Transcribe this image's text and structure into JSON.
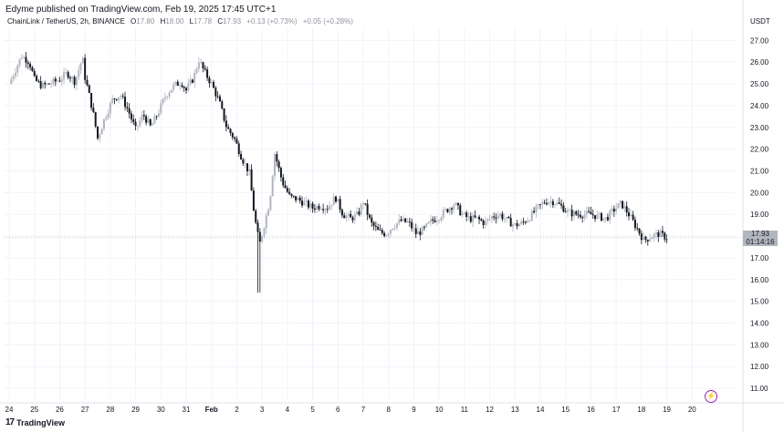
{
  "publisher": "Edyme published on TradingView.com, Feb 19, 2025 17:45 UTC+1",
  "legend": {
    "symbol": "ChainLink / TetherUS, 2h, BINANCE",
    "o_label": "O",
    "o": "17.80",
    "h_label": "H",
    "h": "18.00",
    "l_label": "L",
    "l": "17.78",
    "c_label": "C",
    "c": "17.93",
    "change": "+0.13 (+0.73%)",
    "change2": "+0.05 (+0.28%)"
  },
  "price_box": {
    "price": "17.93",
    "countdown": "01:14:16"
  },
  "footer": {
    "logo": "17",
    "brand": "TradingView"
  },
  "colors": {
    "up": "#b2b5be",
    "down": "#131722",
    "grid": "#f0f3fa",
    "accent": "#9c27b0"
  },
  "icons": {
    "bolt": "lightning-icon"
  },
  "chart_data": {
    "type": "candlestick",
    "unit": "USDT",
    "y_ticks": [
      "27.00",
      "26.00",
      "25.00",
      "24.00",
      "23.00",
      "22.00",
      "21.00",
      "20.00",
      "19.00",
      "18.00",
      "17.00",
      "16.00",
      "15.00",
      "14.00",
      "13.00",
      "12.00",
      "11.00"
    ],
    "x_ticks": [
      "24",
      "25",
      "26",
      "27",
      "28",
      "29",
      "30",
      "31",
      "Feb",
      "2",
      "3",
      "4",
      "5",
      "6",
      "7",
      "8",
      "9",
      "10",
      "11",
      "12",
      "13",
      "14",
      "15",
      "16",
      "17",
      "18",
      "19",
      "20"
    ],
    "ylim": [
      10.5,
      27.6
    ],
    "xlim": [
      0,
      28
    ],
    "grid": true,
    "current_price": 17.93,
    "close_path": [
      [
        0.0,
        25.0
      ],
      [
        0.3,
        25.8
      ],
      [
        0.5,
        26.3
      ],
      [
        0.8,
        26.0
      ],
      [
        1.0,
        25.2
      ],
      [
        1.3,
        24.9
      ],
      [
        1.6,
        25.0
      ],
      [
        2.0,
        25.2
      ],
      [
        2.3,
        25.5
      ],
      [
        2.6,
        25.1
      ],
      [
        2.9,
        26.2
      ],
      [
        3.0,
        25.3
      ],
      [
        3.3,
        23.8
      ],
      [
        3.5,
        22.5
      ],
      [
        3.8,
        23.5
      ],
      [
        4.1,
        24.3
      ],
      [
        4.4,
        24.5
      ],
      [
        4.7,
        23.8
      ],
      [
        5.0,
        22.9
      ],
      [
        5.3,
        23.6
      ],
      [
        5.6,
        23.0
      ],
      [
        5.9,
        23.7
      ],
      [
        6.2,
        24.5
      ],
      [
        6.5,
        24.9
      ],
      [
        6.8,
        25.1
      ],
      [
        7.0,
        24.7
      ],
      [
        7.3,
        25.3
      ],
      [
        7.5,
        26.1
      ],
      [
        7.7,
        25.6
      ],
      [
        8.0,
        25.0
      ],
      [
        8.3,
        24.2
      ],
      [
        8.6,
        23.0
      ],
      [
        8.9,
        22.5
      ],
      [
        9.2,
        21.6
      ],
      [
        9.5,
        20.9
      ],
      [
        9.7,
        18.9
      ],
      [
        9.9,
        17.6
      ],
      [
        10.1,
        18.6
      ],
      [
        10.3,
        19.6
      ],
      [
        10.5,
        21.8
      ],
      [
        10.8,
        20.5
      ],
      [
        11.1,
        19.8
      ],
      [
        11.4,
        19.7
      ],
      [
        11.7,
        19.5
      ],
      [
        12.0,
        19.3
      ],
      [
        12.3,
        19.4
      ],
      [
        12.6,
        19.3
      ],
      [
        12.9,
        19.8
      ],
      [
        13.2,
        19.0
      ],
      [
        13.5,
        18.8
      ],
      [
        13.8,
        19.0
      ],
      [
        14.0,
        19.6
      ],
      [
        14.3,
        18.6
      ],
      [
        14.6,
        18.2
      ],
      [
        14.9,
        18.1
      ],
      [
        15.2,
        18.5
      ],
      [
        15.5,
        18.7
      ],
      [
        15.8,
        18.6
      ],
      [
        16.1,
        18.1
      ],
      [
        16.4,
        18.3
      ],
      [
        16.7,
        18.7
      ],
      [
        17.0,
        18.9
      ],
      [
        17.3,
        19.2
      ],
      [
        17.6,
        19.5
      ],
      [
        17.9,
        19.0
      ],
      [
        18.2,
        18.8
      ],
      [
        18.5,
        18.8
      ],
      [
        18.8,
        18.6
      ],
      [
        19.1,
        18.9
      ],
      [
        19.4,
        19.0
      ],
      [
        19.7,
        18.7
      ],
      [
        20.0,
        18.5
      ],
      [
        20.3,
        18.6
      ],
      [
        20.6,
        18.9
      ],
      [
        20.9,
        19.3
      ],
      [
        21.2,
        19.6
      ],
      [
        21.5,
        19.6
      ],
      [
        21.8,
        19.4
      ],
      [
        22.1,
        19.1
      ],
      [
        22.4,
        19.0
      ],
      [
        22.7,
        19.0
      ],
      [
        23.0,
        19.0
      ],
      [
        23.3,
        18.9
      ],
      [
        23.6,
        18.8
      ],
      [
        23.9,
        19.2
      ],
      [
        24.2,
        19.5
      ],
      [
        24.5,
        19.0
      ],
      [
        24.8,
        18.4
      ],
      [
        25.1,
        17.8
      ],
      [
        25.4,
        18.0
      ],
      [
        25.7,
        18.1
      ],
      [
        26.0,
        17.93
      ]
    ]
  }
}
